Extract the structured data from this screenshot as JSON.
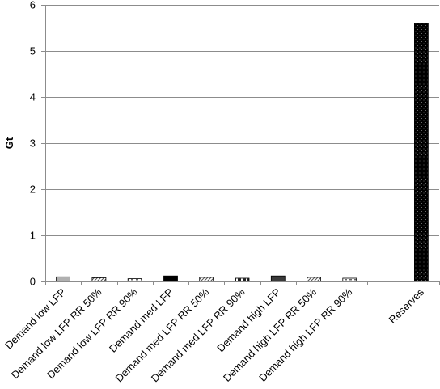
{
  "chart_data": {
    "type": "bar",
    "title": "",
    "xlabel": "",
    "ylabel": "Gt",
    "ylim": [
      0,
      6
    ],
    "yticks": [
      0,
      1,
      2,
      3,
      4,
      5,
      6
    ],
    "grid": true,
    "legend": "none",
    "categories": [
      "Demand low LFP",
      "Demand low LFP RR 50%",
      "Demand low LFP RR 90%",
      "Demand med LFP",
      "Demand med LFP RR 50%",
      "Demand med LFP RR 90%",
      "Demand high LFP",
      "Demand high LFP RR 50%",
      "Demand high LFP RR 90%",
      "",
      "Reserves"
    ],
    "values": [
      0.1,
      0.08,
      0.06,
      0.12,
      0.09,
      0.07,
      0.12,
      0.09,
      0.07,
      null,
      5.6
    ],
    "bar_styles": [
      "light-gray",
      "diagonal-hatch",
      "dashed-horizontal",
      "black",
      "diagonal-hatch",
      "dashed-horizontal-dark",
      "dark-gray",
      "diagonal-hatch",
      "dashed-horizontal",
      "none",
      "black-dotted"
    ]
  }
}
